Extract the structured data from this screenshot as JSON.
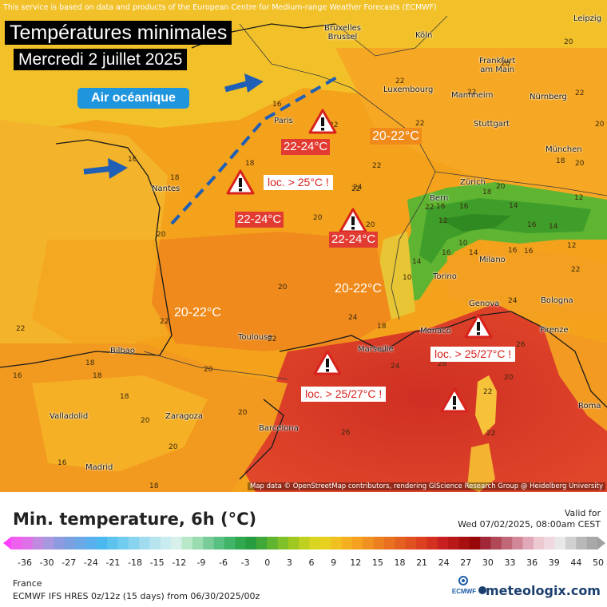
{
  "header": {
    "disclaimer": "This service is based on data and products of the European Centre for Medium-range Weather Forecasts (ECMWF)",
    "title": "Températures minimales",
    "subtitle": "Mercredi 2 juillet 2025",
    "oceanic_label": "Air océanique"
  },
  "cities": [
    {
      "name": "Bruxelles\nBrussel"
    },
    {
      "name": "Köln"
    },
    {
      "name": "Leipzig"
    },
    {
      "name": "Frankfurt\nam Main"
    },
    {
      "name": "Luxembourg"
    },
    {
      "name": "Mannheim"
    },
    {
      "name": "Nürnberg"
    },
    {
      "name": "Paris"
    },
    {
      "name": "Stuttgart"
    },
    {
      "name": "München"
    },
    {
      "name": "Nantes"
    },
    {
      "name": "Bern"
    },
    {
      "name": "Zürich"
    },
    {
      "name": "Milano"
    },
    {
      "name": "Torino"
    },
    {
      "name": "Genova"
    },
    {
      "name": "Bologna"
    },
    {
      "name": "Monaco"
    },
    {
      "name": "Firenze"
    },
    {
      "name": "Toulouse"
    },
    {
      "name": "Marseille"
    },
    {
      "name": "Bilbao"
    },
    {
      "name": "Valladolid"
    },
    {
      "name": "Zaragoza"
    },
    {
      "name": "Barcelona"
    },
    {
      "name": "Madrid"
    },
    {
      "name": "Roma"
    }
  ],
  "values": [
    "16",
    "16",
    "18",
    "18",
    "20",
    "20",
    "20",
    "22",
    "22",
    "22",
    "22",
    "18",
    "20",
    "20",
    "20",
    "14",
    "10",
    "12",
    "16",
    "14",
    "12",
    "10",
    "14",
    "16",
    "12",
    "22",
    "24",
    "22",
    "22",
    "20",
    "18",
    "18",
    "16",
    "22",
    "18",
    "20",
    "16",
    "20",
    "20",
    "18",
    "24",
    "26",
    "26",
    "28",
    "20",
    "22",
    "22",
    "24",
    "18",
    "16",
    "22",
    "20",
    "18",
    "16",
    "16",
    "14",
    "16",
    "20",
    "24",
    "22",
    "22",
    "22",
    "20"
  ],
  "ranges": {
    "r1": "22-24°C",
    "r2": "22-24°C",
    "r3": "22-24°C",
    "o1": "20-22°C",
    "o2": "20-22°C",
    "o3": "20-22°C"
  },
  "alerts": {
    "a1": "loc. > 25°C !",
    "a2": "loc. > 25/27°C !",
    "a3": "loc. > 25/27°C !"
  },
  "map_credit": "Map data © OpenStreetMap contributors, rendering GIScience Research Group @ Heidelberg University",
  "legend": {
    "title": "Min. temperature, 6h (°C)",
    "valid_for": "Valid for",
    "valid_time": "Wed 07/02/2025, 08:00am CEST",
    "ticks": [
      "-36",
      "-30",
      "-27",
      "-24",
      "-21",
      "-18",
      "-15",
      "-12",
      "-9",
      "-6",
      "-3",
      "0",
      "3",
      "6",
      "9",
      "12",
      "15",
      "18",
      "21",
      "24",
      "27",
      "30",
      "33",
      "36",
      "39",
      "44",
      "50"
    ],
    "region": "France",
    "model_line": "ECMWF IFS HRES 0z/12z (15 days) from  06/30/2025/00z",
    "ecmwf_logo": "ECMWF",
    "brand": "meteologix.com"
  },
  "colors": {
    "warning_red": "#d8221c",
    "range_red": "#e23b32",
    "arrow_blue": "#1f5fb5",
    "oceanic_blue": "#1f95de"
  }
}
